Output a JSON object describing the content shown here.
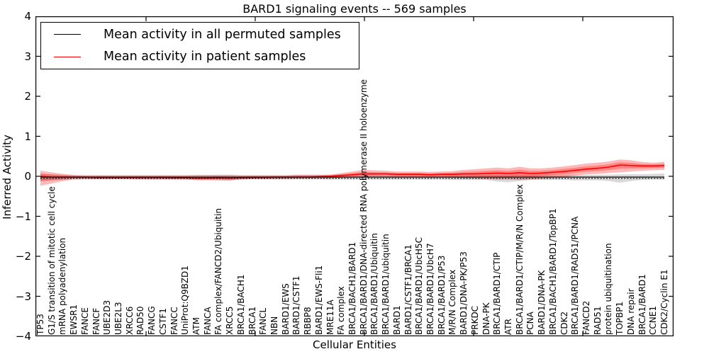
{
  "title": "BARD1 signaling events -- 569 samples",
  "axes": {
    "ylabel": "Inferred Activity",
    "xlabel": "Cellular Entities"
  },
  "legend": {
    "entries": [
      {
        "label": "Mean activity in all permuted samples",
        "color": "#000000"
      },
      {
        "label": "Mean activity in patient samples",
        "color": "#ff0000"
      }
    ],
    "position": "upper left"
  },
  "colors": {
    "permuted_line": "#000000",
    "permuted_band": "rgba(128,128,128,0.30)",
    "patient_line": "#ff0000",
    "patient_band": "rgba(255,0,0,0.28)",
    "axis": "#000000"
  },
  "chart_data": {
    "type": "line",
    "title": "BARD1 signaling events -- 569 samples",
    "xlabel": "Cellular Entities",
    "ylabel": "Inferred Activity",
    "ylim": [
      -4,
      4
    ],
    "yticks": [
      4,
      3,
      2,
      1,
      0,
      -1,
      -2,
      -3,
      -4
    ],
    "grid": false,
    "legend_position": "upper left",
    "categories": [
      "TP53",
      "G1/S transition of mitotic cell cycle",
      "mRNA polyadenylation",
      "EWSR1",
      "FANCE",
      "FANCF",
      "UBE2D3",
      "UBE2L3",
      "XRCC6",
      "RAD50",
      "FANCG",
      "CSTF1",
      "FANCC",
      "UniProt:Q9BZD1",
      "ATM",
      "FANCA",
      "FA complex/FANCD2/Ubiquitin",
      "XRCC5",
      "BRCA1/BACH1",
      "BRCA1",
      "FANCL",
      "NBN",
      "BARD1/EWS",
      "BARD1/CSTF1",
      "RBBP8",
      "BARD1/EWS-Fli1",
      "MRE11A",
      "FA complex",
      "BRCA1/BACH1/BARD1",
      "BRCA1/BARD1/DNA-directed RNA polymerase II holoenzyme",
      "BRCA1/BARD1/Ubiquitin",
      "BRCA1/BARD1/ubiquitin",
      "BARD1",
      "BARD1/CSTF1/BRCA1",
      "BRCA1/BARD1/UbcH5C",
      "BRCA1/BARD1/UbcH7",
      "BRCA1/BARD1/P53",
      "M/R/N Complex",
      "BARD1/DNA-PK/P53",
      "PRKDC",
      "DNA-PK",
      "BRCA1/BARD1/CTIP",
      "ATR",
      "BRCA1/BARD1/CTIP/M/R/N Complex",
      "PCNA",
      "BARD1/DNA-PK",
      "BRCA1/BACH1/BARD1/TopBP1",
      "CDK2",
      "BRCA1/BARD1/RAD51/PCNA",
      "FANCD2",
      "RAD51",
      "protein ubiquitination",
      "TOPBP1",
      "DNA repair",
      "BRCA1/BARD1",
      "CCNE1",
      "CDK2/Cyclin E1"
    ],
    "series": [
      {
        "name": "Mean activity in all permuted samples",
        "color": "#000000",
        "values": [
          -0.02,
          -0.02,
          -0.02,
          -0.02,
          -0.02,
          -0.02,
          -0.02,
          -0.02,
          -0.02,
          -0.02,
          -0.02,
          -0.02,
          -0.02,
          -0.02,
          -0.02,
          -0.02,
          -0.02,
          -0.02,
          -0.02,
          -0.02,
          -0.02,
          -0.02,
          -0.02,
          -0.02,
          -0.02,
          -0.02,
          -0.02,
          -0.02,
          -0.02,
          -0.02,
          -0.02,
          -0.02,
          -0.02,
          -0.02,
          -0.02,
          -0.02,
          -0.02,
          -0.02,
          -0.02,
          -0.02,
          -0.02,
          -0.02,
          -0.02,
          -0.02,
          -0.02,
          -0.02,
          -0.02,
          -0.02,
          -0.02,
          -0.02,
          -0.02,
          -0.02,
          -0.02,
          -0.02,
          -0.02,
          -0.02,
          -0.02
        ],
        "band_hi": [
          0.06,
          0.05,
          0.04,
          0.03,
          0.03,
          0.03,
          0.03,
          0.03,
          0.03,
          0.03,
          0.03,
          0.03,
          0.03,
          0.03,
          0.03,
          0.03,
          0.04,
          0.04,
          0.03,
          0.03,
          0.03,
          0.03,
          0.03,
          0.03,
          0.03,
          0.03,
          0.04,
          0.04,
          0.04,
          0.04,
          0.04,
          0.03,
          0.03,
          0.03,
          0.03,
          0.03,
          0.03,
          0.04,
          0.04,
          0.04,
          0.04,
          0.04,
          0.04,
          0.04,
          0.04,
          0.04,
          0.04,
          0.04,
          0.04,
          0.04,
          0.04,
          0.04,
          0.05,
          0.05,
          0.05,
          0.06,
          0.07
        ],
        "band_lo": [
          -0.12,
          -0.1,
          -0.09,
          -0.07,
          -0.07,
          -0.07,
          -0.07,
          -0.07,
          -0.07,
          -0.08,
          -0.08,
          -0.08,
          -0.08,
          -0.08,
          -0.08,
          -0.08,
          -0.1,
          -0.11,
          -0.08,
          -0.07,
          -0.07,
          -0.07,
          -0.07,
          -0.07,
          -0.07,
          -0.07,
          -0.08,
          -0.08,
          -0.08,
          -0.08,
          -0.08,
          -0.08,
          -0.08,
          -0.08,
          -0.08,
          -0.08,
          -0.08,
          -0.09,
          -0.09,
          -0.09,
          -0.09,
          -0.13,
          -0.15,
          -0.12,
          -0.09,
          -0.09,
          -0.09,
          -0.09,
          -0.1,
          -0.1,
          -0.1,
          -0.12,
          -0.16,
          -0.12,
          -0.09,
          -0.08,
          -0.08
        ]
      },
      {
        "name": "Mean activity in patient samples",
        "color": "#ff0000",
        "values": [
          0.0,
          -0.02,
          -0.02,
          -0.02,
          -0.02,
          -0.03,
          -0.03,
          -0.03,
          -0.03,
          -0.03,
          -0.03,
          -0.03,
          -0.04,
          -0.04,
          -0.05,
          -0.05,
          -0.04,
          -0.05,
          -0.04,
          -0.03,
          -0.03,
          -0.02,
          -0.02,
          -0.02,
          -0.02,
          -0.01,
          0.0,
          0.02,
          0.04,
          0.06,
          0.06,
          0.06,
          0.05,
          0.05,
          0.05,
          0.04,
          0.05,
          0.05,
          0.06,
          0.06,
          0.07,
          0.08,
          0.07,
          0.09,
          0.07,
          0.08,
          0.1,
          0.12,
          0.15,
          0.18,
          0.2,
          0.23,
          0.28,
          0.27,
          0.26,
          0.26,
          0.27
        ],
        "band_hi": [
          0.14,
          0.1,
          0.06,
          0.03,
          0.02,
          0.02,
          0.02,
          0.02,
          0.02,
          0.02,
          0.02,
          0.02,
          0.02,
          0.02,
          0.03,
          0.03,
          0.03,
          0.03,
          0.02,
          0.02,
          0.02,
          0.02,
          0.02,
          0.04,
          0.04,
          0.04,
          0.04,
          0.08,
          0.12,
          0.16,
          0.15,
          0.14,
          0.12,
          0.12,
          0.12,
          0.11,
          0.12,
          0.13,
          0.16,
          0.18,
          0.2,
          0.22,
          0.2,
          0.24,
          0.2,
          0.2,
          0.22,
          0.25,
          0.28,
          0.32,
          0.34,
          0.37,
          0.42,
          0.4,
          0.36,
          0.34,
          0.36
        ],
        "band_lo": [
          -0.24,
          -0.18,
          -0.12,
          -0.08,
          -0.07,
          -0.07,
          -0.07,
          -0.07,
          -0.07,
          -0.08,
          -0.08,
          -0.08,
          -0.08,
          -0.08,
          -0.1,
          -0.1,
          -0.1,
          -0.1,
          -0.08,
          -0.07,
          -0.07,
          -0.07,
          -0.07,
          -0.06,
          -0.06,
          -0.06,
          -0.06,
          -0.04,
          -0.03,
          -0.02,
          -0.02,
          -0.02,
          -0.03,
          -0.03,
          -0.03,
          -0.04,
          -0.03,
          -0.04,
          -0.05,
          -0.06,
          -0.07,
          -0.08,
          -0.08,
          -0.09,
          -0.08,
          -0.06,
          -0.04,
          -0.02,
          0.02,
          0.05,
          0.06,
          0.08,
          0.1,
          0.12,
          0.14,
          0.15,
          0.16
        ]
      }
    ]
  }
}
